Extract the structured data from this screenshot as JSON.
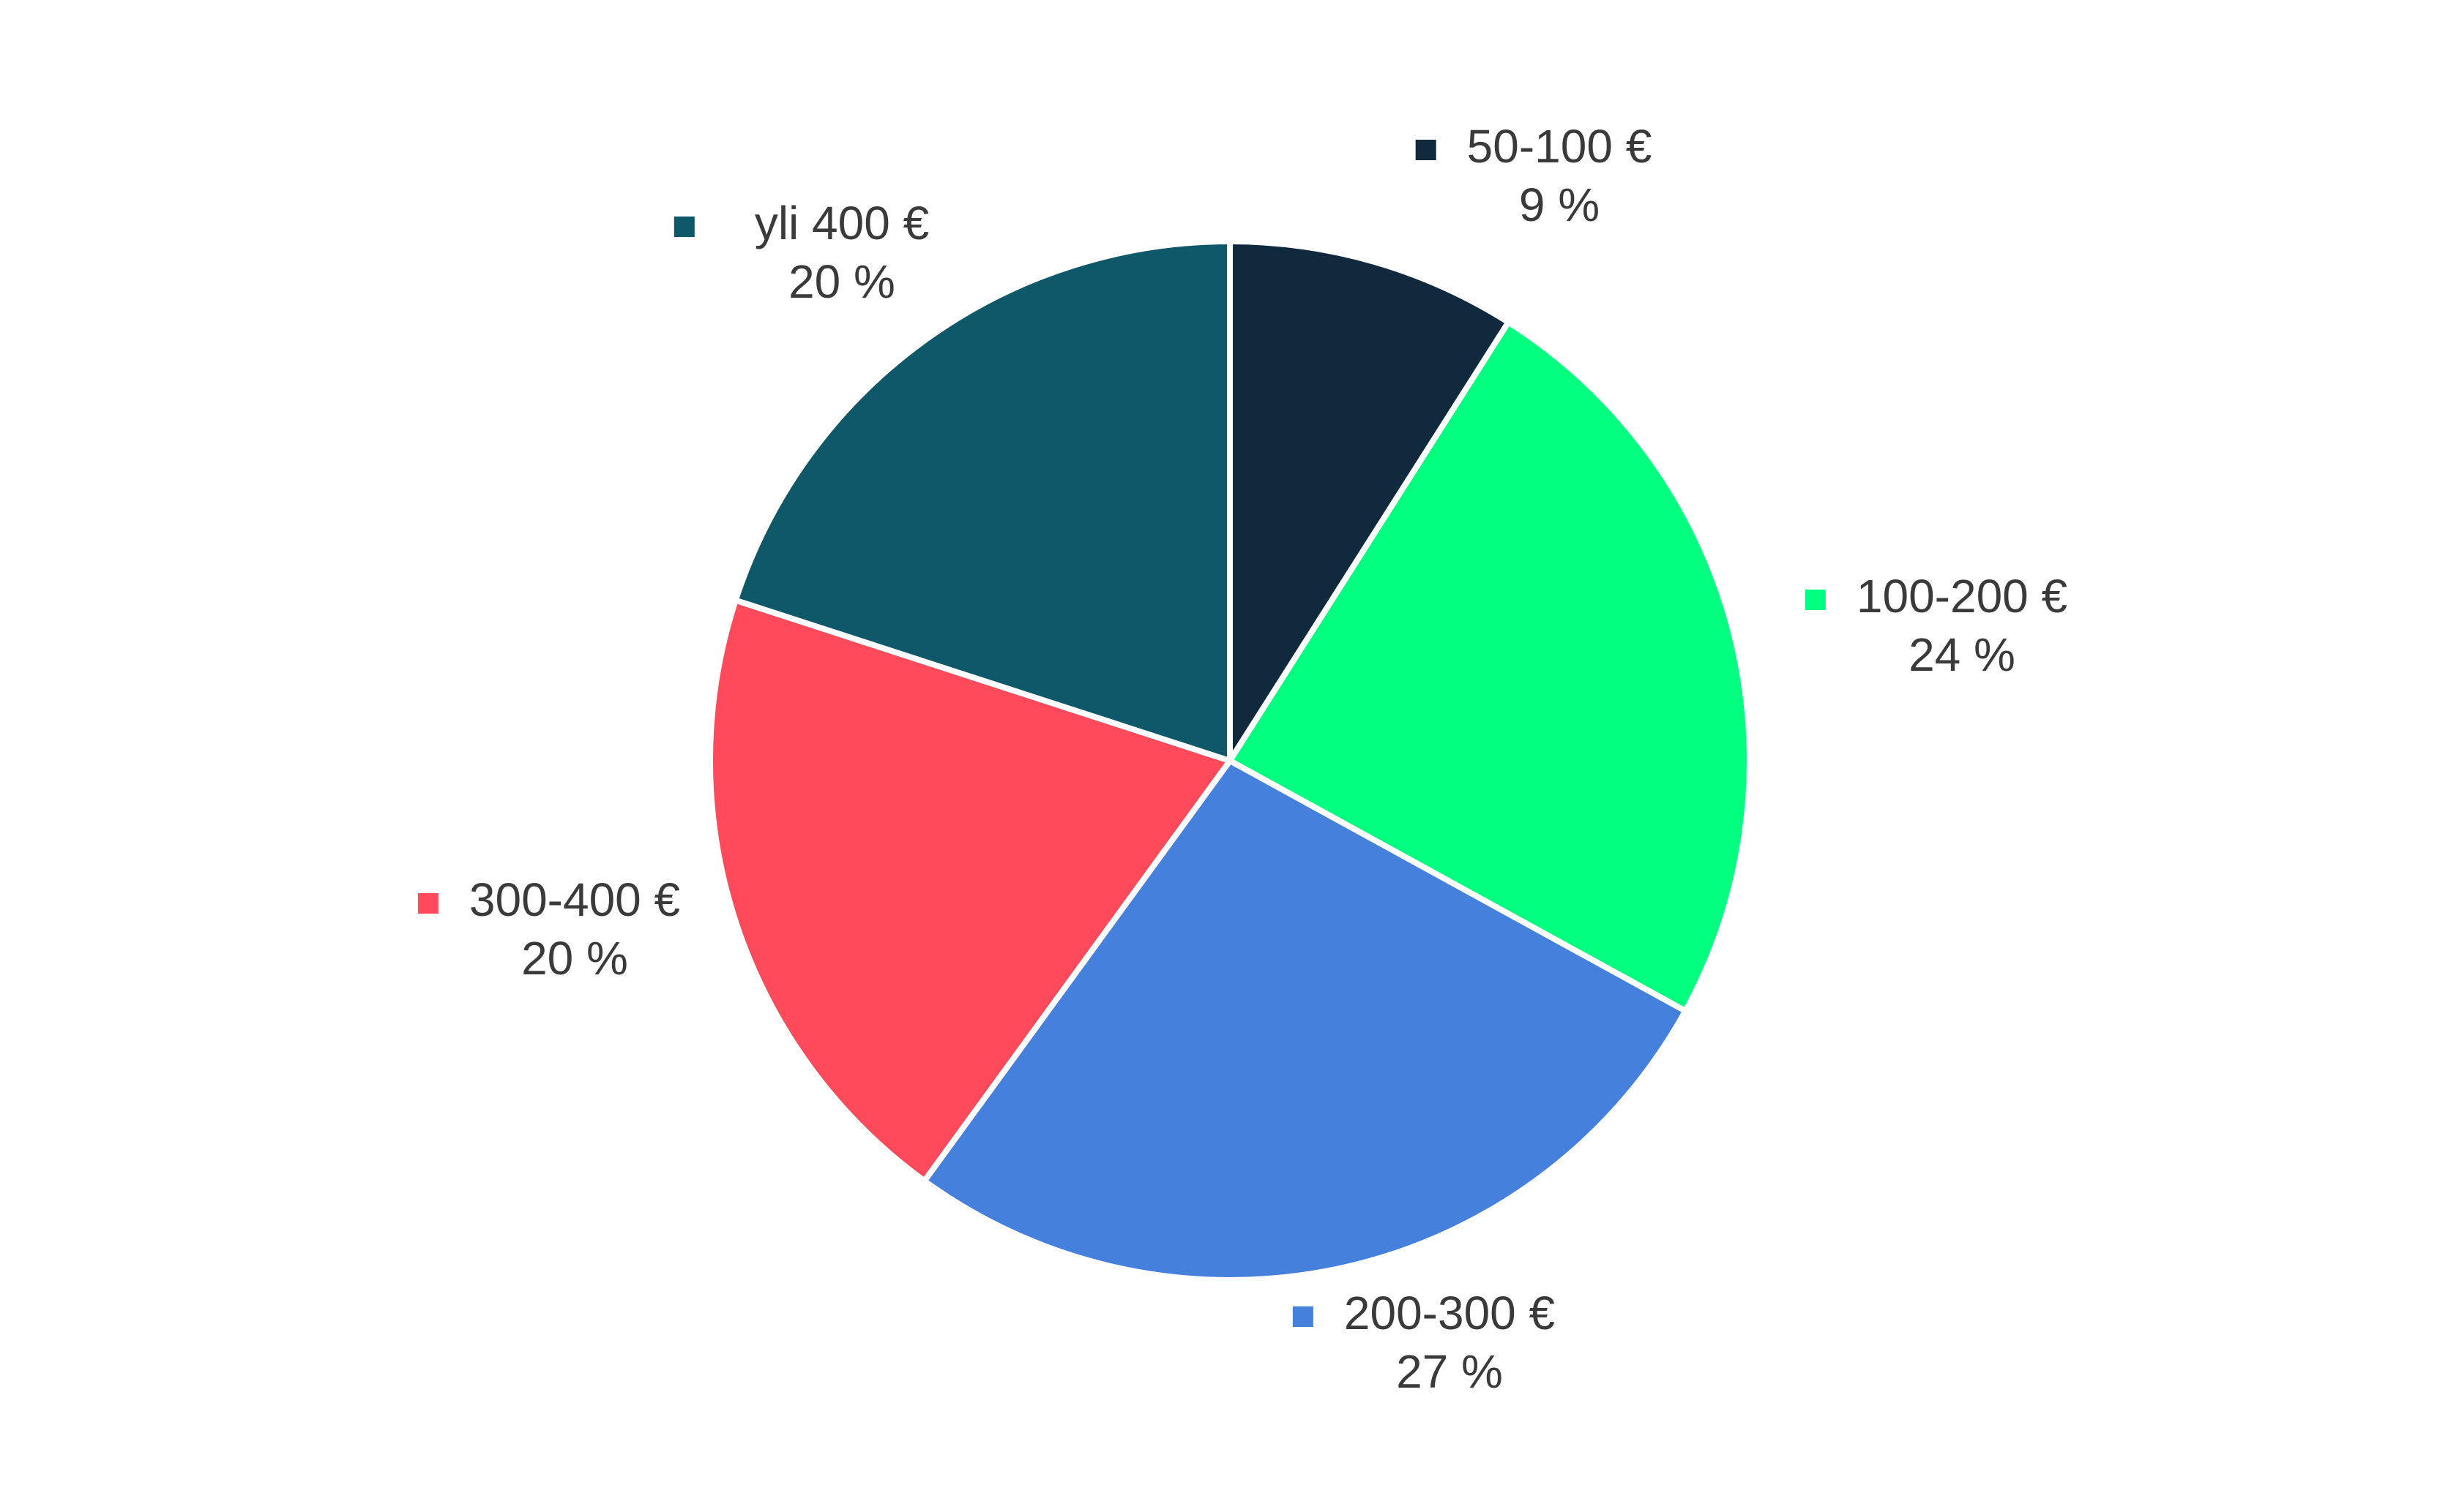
{
  "chart_data": {
    "type": "pie",
    "title": "",
    "start_angle_deg": 0,
    "direction": "clockwise",
    "slices": [
      {
        "label": "50-100 €",
        "value": 9,
        "value_label": "9 %",
        "color": "#10293c"
      },
      {
        "label": "100-200 €",
        "value": 24,
        "value_label": "24 %",
        "color": "#02ff7f"
      },
      {
        "label": "200-300 €",
        "value": 27,
        "value_label": "27 %",
        "color": "#4680dd"
      },
      {
        "label": "300-400 €",
        "value": 20,
        "value_label": "20 %",
        "color": "#ff4a5c"
      },
      {
        "label": "yli 400 €",
        "value": 20,
        "value_label": "20 %",
        "color": "#0e5869"
      }
    ],
    "legend": "inline labels outside slices with colored square markers"
  }
}
